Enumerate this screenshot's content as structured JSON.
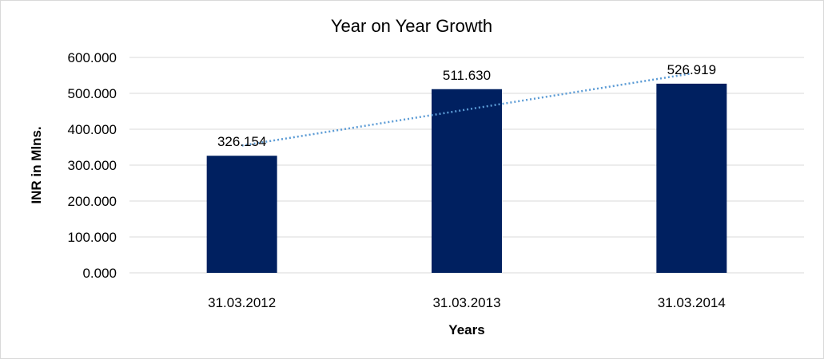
{
  "chart_data": {
    "type": "bar",
    "title": "Year on Year Growth",
    "xlabel": "Years",
    "ylabel": "INR in Mlns.",
    "categories": [
      "31.03.2012",
      "31.03.2013",
      "31.03.2014"
    ],
    "values": [
      326.154,
      511.63,
      526.919
    ],
    "value_labels": [
      "326.154",
      "511.630",
      "526.919"
    ],
    "ylim": [
      0,
      600
    ],
    "yticks": [
      0,
      100,
      200,
      300,
      400,
      500,
      600
    ],
    "ytick_labels": [
      "0.000",
      "100.000",
      "200.000",
      "300.000",
      "400.000",
      "500.000",
      "600.000"
    ],
    "grid": true,
    "legend": "none",
    "trendline": {
      "type": "linear",
      "style": "dotted"
    },
    "colors": {
      "bar": "#002060",
      "trendline": "#5b9bd5",
      "grid": "#d9d9d9"
    }
  }
}
